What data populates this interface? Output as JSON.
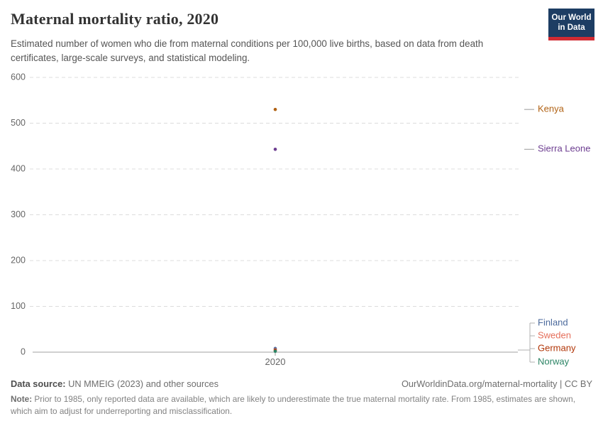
{
  "header": {
    "title": "Maternal mortality ratio, 2020",
    "subtitle": "Estimated number of women who die from maternal conditions per 100,000 live births, based on data from death certificates, large-scale surveys, and statistical modeling.",
    "logo": {
      "line1": "Our World",
      "line2": "in Data",
      "bg_color": "#1d3d63",
      "accent_color": "#d12b33"
    }
  },
  "chart_data": {
    "type": "scatter",
    "x": [
      2020
    ],
    "x_tick_label": "2020",
    "ylim": [
      0,
      600
    ],
    "yticks": [
      0,
      100,
      200,
      300,
      400,
      500,
      600
    ],
    "grid": true,
    "legend_position": "right",
    "series": [
      {
        "name": "Kenya",
        "values": [
          530
        ],
        "color": "#B16214"
      },
      {
        "name": "Sierra Leone",
        "values": [
          443
        ],
        "color": "#6D3E91"
      },
      {
        "name": "Finland",
        "values": [
          8
        ],
        "color": "#4C6A9C"
      },
      {
        "name": "Sweden",
        "values": [
          5
        ],
        "color": "#E56E5A"
      },
      {
        "name": "Germany",
        "values": [
          4
        ],
        "color": "#B13507"
      },
      {
        "name": "Norway",
        "values": [
          2
        ],
        "color": "#2C8465"
      }
    ],
    "colors": {
      "gridline": "#dcdcdc",
      "axis_line": "#a1a1a1",
      "tick_label": "#666666",
      "leader_line": "#b0b0b0",
      "entity_dash": "#999999"
    }
  },
  "footer": {
    "datasource_label": "Data source:",
    "datasource_value": " UN MMEIG (2023) and other sources",
    "link": "OurWorldinData.org/maternal-mortality | CC BY",
    "note_label": "Note:",
    "note_value": " Prior to 1985, only reported data are available, which are likely to underestimate the true maternal mortality rate. From 1985, estimates are shown, which aim to adjust for underreporting and misclassification."
  }
}
